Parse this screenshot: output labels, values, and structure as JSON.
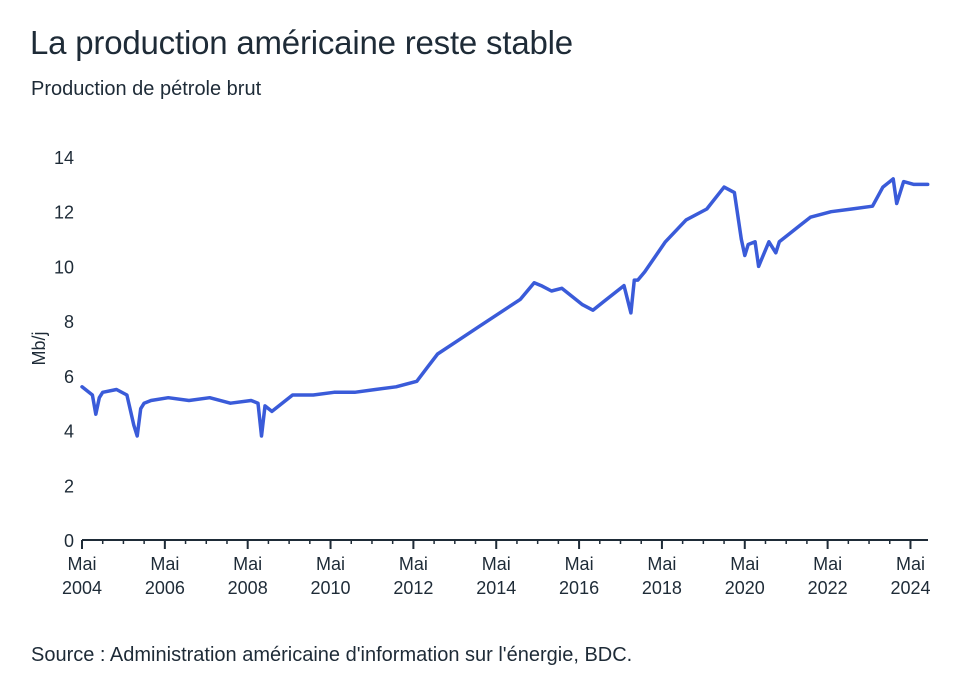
{
  "title": "La production américaine reste stable",
  "subtitle": "Production de pétrole brut",
  "source": "Source : Administration américaine d'information sur l'énergie, BDC.",
  "colors": {
    "line": "#3a5bd9",
    "axis": "#1e2b37",
    "text": "#1e2b37"
  },
  "chart_data": {
    "type": "line",
    "title": "La production américaine reste stable",
    "subtitle": "Production de pétrole brut",
    "ylabel": "Mb/j",
    "xlabel": "",
    "ylim": [
      0,
      14
    ],
    "y_ticks": [
      "0",
      "2",
      "4",
      "6",
      "8",
      "10",
      "12",
      "14"
    ],
    "x_ticks": [
      {
        "year": 2004,
        "line1": "Mai",
        "line2": "2004"
      },
      {
        "year": 2006,
        "line1": "Mai",
        "line2": "2006"
      },
      {
        "year": 2008,
        "line1": "Mai",
        "line2": "2008"
      },
      {
        "year": 2010,
        "line1": "Mai",
        "line2": "2010"
      },
      {
        "year": 2012,
        "line1": "Mai",
        "line2": "2012"
      },
      {
        "year": 2014,
        "line1": "Mai",
        "line2": "2014"
      },
      {
        "year": 2016,
        "line1": "Mai",
        "line2": "2016"
      },
      {
        "year": 2018,
        "line1": "Mai",
        "line2": "2018"
      },
      {
        "year": 2020,
        "line1": "Mai",
        "line2": "2020"
      },
      {
        "year": 2022,
        "line1": "Mai",
        "line2": "2022"
      },
      {
        "year": 2024,
        "line1": "Mai",
        "line2": "2024"
      }
    ],
    "grid": false,
    "series": [
      {
        "x": [
          "2004-05",
          "2004-08",
          "2004-09",
          "2004-10",
          "2004-11",
          "2005-03",
          "2005-06",
          "2005-08",
          "2005-09",
          "2005-10",
          "2005-11",
          "2006-01",
          "2006-06",
          "2006-12",
          "2007-06",
          "2007-12",
          "2008-06",
          "2008-08",
          "2008-09",
          "2008-10",
          "2008-12",
          "2009-06",
          "2009-12",
          "2010-06",
          "2010-12",
          "2011-06",
          "2011-12",
          "2012-06",
          "2012-09",
          "2012-12",
          "2013-06",
          "2013-12",
          "2014-06",
          "2014-12",
          "2015-04",
          "2015-06",
          "2015-09",
          "2015-12",
          "2016-06",
          "2016-09",
          "2016-12",
          "2017-06",
          "2017-08",
          "2017-09",
          "2017-10",
          "2017-12",
          "2018-06",
          "2018-12",
          "2019-06",
          "2019-11",
          "2020-02",
          "2020-04",
          "2020-05",
          "2020-06",
          "2020-08",
          "2020-09",
          "2020-12",
          "2021-02",
          "2021-03",
          "2021-06",
          "2021-09",
          "2021-12",
          "2022-06",
          "2022-12",
          "2023-06",
          "2023-09",
          "2023-12",
          "2024-01",
          "2024-03",
          "2024-06",
          "2024-10"
        ],
        "y": [
          5.6,
          5.3,
          4.6,
          5.2,
          5.4,
          5.5,
          5.3,
          4.2,
          3.8,
          4.8,
          5.0,
          5.1,
          5.2,
          5.1,
          5.2,
          5.0,
          5.1,
          5.0,
          3.8,
          4.9,
          4.7,
          5.3,
          5.3,
          5.4,
          5.4,
          5.5,
          5.6,
          5.8,
          6.3,
          6.8,
          7.3,
          7.8,
          8.3,
          8.8,
          9.4,
          9.3,
          9.1,
          9.2,
          8.6,
          8.4,
          8.7,
          9.3,
          8.3,
          9.5,
          9.5,
          9.8,
          10.9,
          11.7,
          12.1,
          12.9,
          12.7,
          11.0,
          10.4,
          10.8,
          10.9,
          10.0,
          10.9,
          10.5,
          10.9,
          11.2,
          11.5,
          11.8,
          12.0,
          12.1,
          12.2,
          12.9,
          13.2,
          12.3,
          13.1,
          13.0,
          13.0
        ]
      }
    ]
  }
}
